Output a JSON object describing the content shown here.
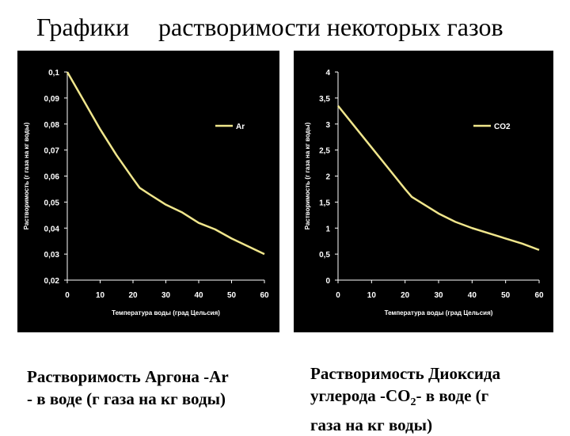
{
  "heading": {
    "part1": "Графики",
    "part2": "растворимости  некоторых  газов"
  },
  "chart_data": [
    {
      "type": "line",
      "title": "",
      "xlabel": "Температура воды (град Цельсия)",
      "ylabel": "Растворимость (г газа на кг воды)",
      "xlim": [
        0,
        60
      ],
      "ylim": [
        0.02,
        0.1
      ],
      "x_ticks": [
        "0",
        "10",
        "20",
        "30",
        "40",
        "50",
        "60"
      ],
      "y_ticks": [
        "0,02",
        "0,03",
        "0,04",
        "0,05",
        "0,06",
        "0,07",
        "0,08",
        "0,09",
        "0,1"
      ],
      "legend_position": "top-right",
      "grid": false,
      "series": [
        {
          "name": "Ar",
          "color": "#f0e68c",
          "x": [
            0,
            5,
            10,
            15,
            20,
            22,
            25,
            30,
            35,
            40,
            45,
            50,
            55,
            60
          ],
          "y": [
            0.1,
            0.089,
            0.078,
            0.068,
            0.059,
            0.0555,
            0.053,
            0.049,
            0.046,
            0.042,
            0.0395,
            0.036,
            0.033,
            0.03
          ]
        }
      ]
    },
    {
      "type": "line",
      "title": "",
      "xlabel": "Температура воды (град Цельсия)",
      "ylabel": "Растворимость (г газа на кг воды)",
      "xlim": [
        0,
        60
      ],
      "ylim": [
        0,
        4
      ],
      "x_ticks": [
        "0",
        "10",
        "20",
        "30",
        "40",
        "50",
        "60"
      ],
      "y_ticks": [
        "0",
        "0,5",
        "1",
        "1,5",
        "2",
        "2,5",
        "3",
        "3,5",
        "4"
      ],
      "legend_position": "top-right",
      "grid": false,
      "series": [
        {
          "name": "CO2",
          "color": "#f0e68c",
          "x": [
            0,
            5,
            10,
            15,
            20,
            22,
            25,
            30,
            35,
            40,
            45,
            50,
            55,
            60
          ],
          "y": [
            3.35,
            2.95,
            2.55,
            2.15,
            1.75,
            1.6,
            1.48,
            1.28,
            1.12,
            1.0,
            0.9,
            0.8,
            0.7,
            0.58
          ]
        }
      ]
    }
  ],
  "captions": {
    "ar_line1": "Растворимость Аргона -Ar",
    "ar_line2": "- в воде (г газа на кг воды)",
    "co2_line1": "Растворимость Диоксида",
    "co2_line2_a": "углерода -CO",
    "co2_line2_sub": "2",
    "co2_line2_b": "- в воде  (г",
    "co2_line3": "газа на кг воды)"
  }
}
